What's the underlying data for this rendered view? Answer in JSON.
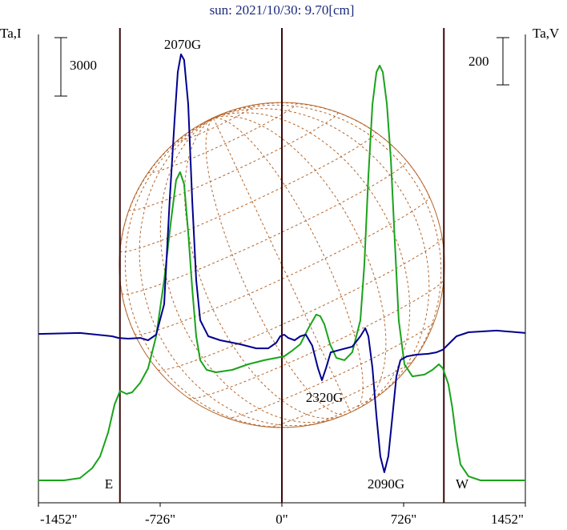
{
  "chart_data": {
    "type": "line",
    "title": "sun: 2021/10/30: 9.70[cm]",
    "ylabel": "Ta,I",
    "y2label": "Ta,V",
    "xlim": [
      -1452,
      1452
    ],
    "xticks": [
      {
        "value": -1452,
        "label": "-1452\""
      },
      {
        "value": -726,
        "label": "-726\""
      },
      {
        "value": 0,
        "label": "0\""
      },
      {
        "value": 726,
        "label": "726\""
      },
      {
        "value": 1452,
        "label": "1452\""
      }
    ],
    "ylim": [
      -1150,
      22890
    ],
    "y2lim": [
      -712,
      1271
    ],
    "y_scale_bar": 3000,
    "y2_scale_bar": 200,
    "vlines": [
      -966,
      0,
      966
    ],
    "annotations": [
      "2070G",
      "2320G",
      "2090G",
      "E",
      "W"
    ],
    "series": [
      {
        "name": "I",
        "color": "#1aa31a",
        "axis": "y",
        "x": [
          -1452,
          -1299,
          -1204,
          -1132,
          -1084,
          -1036,
          -998,
          -965,
          -927,
          -893,
          -845,
          -798,
          -750,
          -702,
          -664,
          -631,
          -607,
          -583,
          -559,
          -535,
          -511,
          -487,
          -449,
          -392,
          -296,
          -201,
          -105,
          -33,
          14,
          62,
          110,
          158,
          205,
          229,
          253,
          287,
          325,
          373,
          420,
          468,
          492,
          516,
          540,
          564,
          583,
          602,
          626,
          650,
          673,
          697,
          731,
          778,
          850,
          898,
          936,
          960,
          993,
          1017,
          1041,
          1065,
          1113,
          1184,
          1452
        ],
        "values": [
          0,
          0,
          120,
          620,
          1230,
          2470,
          3900,
          4600,
          4440,
          4520,
          5010,
          5750,
          7400,
          10280,
          13150,
          15410,
          15820,
          15210,
          12740,
          9860,
          7400,
          6170,
          5670,
          5550,
          5670,
          5960,
          6170,
          6290,
          6370,
          6660,
          6990,
          7810,
          8510,
          8430,
          8020,
          6990,
          6290,
          6170,
          6580,
          8220,
          11100,
          15620,
          19320,
          20960,
          21290,
          20960,
          19320,
          16440,
          12330,
          8220,
          5960,
          5340,
          5430,
          5670,
          5960,
          5750,
          4930,
          3700,
          2060,
          820,
          210,
          0,
          0
        ]
      },
      {
        "name": "V",
        "color": "#00008e",
        "axis": "y2",
        "x": [
          -1452,
          -1204,
          -1013,
          -974,
          -917,
          -845,
          -798,
          -750,
          -702,
          -669,
          -640,
          -621,
          -602,
          -583,
          -559,
          -535,
          -511,
          -487,
          -439,
          -368,
          -248,
          -153,
          -81,
          -33,
          -10,
          14,
          38,
          76,
          110,
          143,
          181,
          215,
          239,
          263,
          291,
          349,
          420,
          468,
          497,
          516,
          540,
          564,
          587,
          611,
          635,
          659,
          683,
          707,
          745,
          802,
          874,
          922,
          960,
          993,
          1041,
          1113,
          1280,
          1452
        ],
        "values": [
          3,
          7,
          -7,
          -14,
          -17,
          -14,
          -24,
          0,
          129,
          570,
          909,
          1112,
          1187,
          1163,
          976,
          570,
          231,
          61,
          -7,
          -24,
          -41,
          -58,
          -58,
          -34,
          -7,
          0,
          -14,
          -24,
          -7,
          0,
          -47,
          -142,
          -193,
          -142,
          -75,
          -64,
          -51,
          -7,
          27,
          -7,
          -142,
          -346,
          -515,
          -583,
          -515,
          -346,
          -176,
          -108,
          -92,
          -85,
          -81,
          -75,
          -64,
          -41,
          -7,
          10,
          17,
          7
        ]
      }
    ]
  }
}
